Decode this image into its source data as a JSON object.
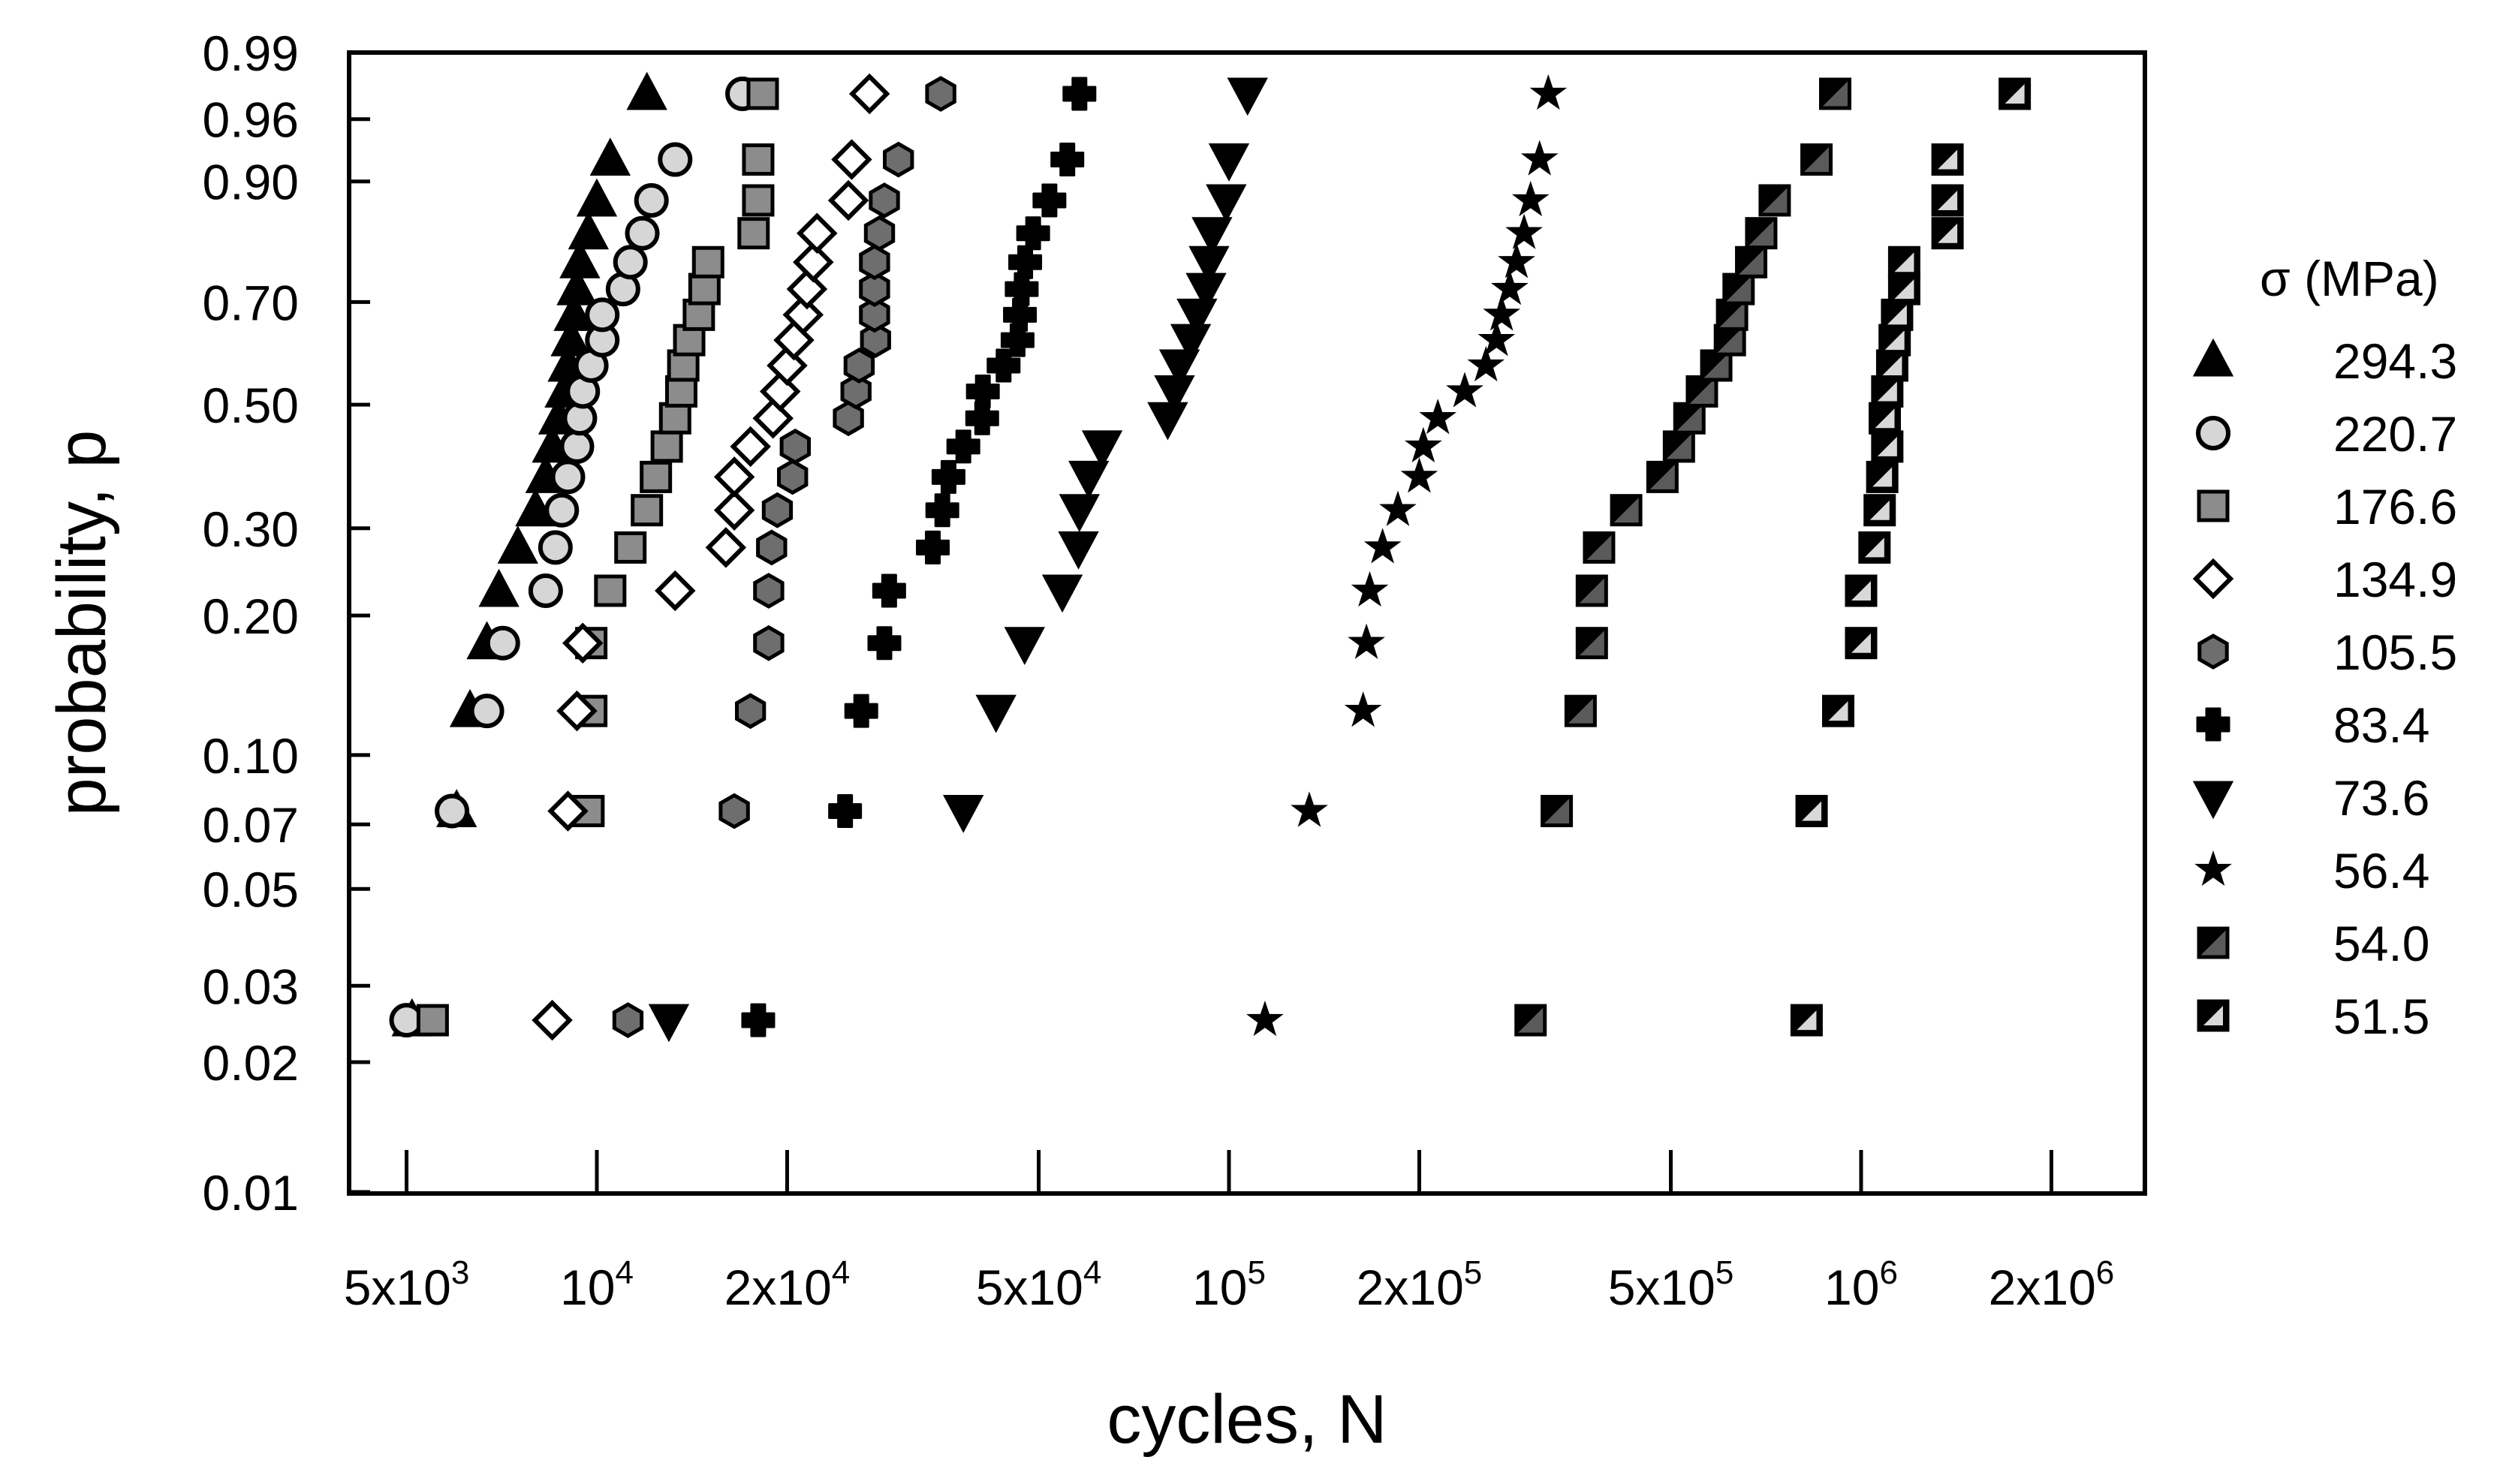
{
  "chart_data": {
    "type": "scatter",
    "title": "",
    "xlabel": "cycles, N",
    "ylabel": "probability, p",
    "x_scale": "log",
    "y_scale": "weibull-probability",
    "xlim": [
      4000,
      3000000
    ],
    "ylim": [
      0.01,
      0.99
    ],
    "grid": false,
    "legend_position": "right",
    "legend_title": "σ (MPa)",
    "y_ticks": [
      {
        "value": 0.01,
        "label": "0.01"
      },
      {
        "value": 0.02,
        "label": "0.02"
      },
      {
        "value": 0.03,
        "label": "0.03"
      },
      {
        "value": 0.05,
        "label": "0.05"
      },
      {
        "value": 0.07,
        "label": "0.07"
      },
      {
        "value": 0.1,
        "label": "0.10"
      },
      {
        "value": 0.2,
        "label": "0.20"
      },
      {
        "value": 0.3,
        "label": "0.30"
      },
      {
        "value": 0.5,
        "label": "0.50"
      },
      {
        "value": 0.7,
        "label": "0.70"
      },
      {
        "value": 0.9,
        "label": "0.90"
      },
      {
        "value": 0.96,
        "label": "0.96"
      },
      {
        "value": 0.99,
        "label": "0.99"
      }
    ],
    "x_ticks": [
      {
        "value": 5000,
        "mantissa": "5x10",
        "exp": "3"
      },
      {
        "value": 10000,
        "mantissa": "10",
        "exp": "4"
      },
      {
        "value": 20000,
        "mantissa": "2x10",
        "exp": "4"
      },
      {
        "value": 50000,
        "mantissa": "5x10",
        "exp": "4"
      },
      {
        "value": 100000,
        "mantissa": "10",
        "exp": "5"
      },
      {
        "value": 200000,
        "mantissa": "2x10",
        "exp": "5"
      },
      {
        "value": 500000,
        "mantissa": "5x10",
        "exp": "5"
      },
      {
        "value": 1000000,
        "mantissa": "10",
        "exp": "6"
      },
      {
        "value": 2000000,
        "mantissa": "2x10",
        "exp": "6"
      }
    ],
    "p_levels": [
      0.025,
      0.075,
      0.125,
      0.175,
      0.225,
      0.275,
      0.325,
      0.375,
      0.425,
      0.475,
      0.525,
      0.575,
      0.625,
      0.675,
      0.725,
      0.775,
      0.825,
      0.875,
      0.925,
      0.975
    ],
    "series": [
      {
        "name": "294.3",
        "marker": "triangle-up",
        "fill": "#000000",
        "x": [
          5100,
          6000,
          6300,
          6700,
          7000,
          7500,
          8000,
          8300,
          8500,
          8700,
          8900,
          9000,
          9100,
          9200,
          9300,
          9400,
          9700,
          10000,
          10500,
          12000
        ]
      },
      {
        "name": "220.7",
        "marker": "circle",
        "fill": "#d6d6d6",
        "x": [
          5000,
          5900,
          6700,
          7100,
          8300,
          8600,
          8800,
          9000,
          9300,
          9400,
          9500,
          9800,
          10200,
          10200,
          11000,
          11300,
          11800,
          12200,
          13300,
          17000
        ]
      },
      {
        "name": "176.6",
        "marker": "square",
        "fill": "#8c8c8c",
        "x": [
          5500,
          9700,
          9800,
          9800,
          10500,
          11300,
          12000,
          12400,
          12900,
          13300,
          13600,
          13700,
          14000,
          14500,
          14800,
          15000,
          17700,
          18000,
          18000,
          18300
        ]
      },
      {
        "name": "134.9",
        "marker": "diamond",
        "fill": "#ffffff",
        "x": [
          8500,
          9000,
          9300,
          9500,
          13300,
          16000,
          16500,
          16500,
          17500,
          19000,
          19500,
          20000,
          20500,
          21200,
          21500,
          22000,
          22300,
          25000,
          25300,
          27000
        ]
      },
      {
        "name": "105.5",
        "marker": "hexagon",
        "fill": "#6e6e6e",
        "x": [
          11200,
          16500,
          17500,
          18700,
          18700,
          18900,
          19300,
          20400,
          20600,
          25000,
          25700,
          26000,
          27600,
          27500,
          27500,
          27500,
          28000,
          28500,
          30000,
          35000
        ]
      },
      {
        "name": "83.4",
        "marker": "plus",
        "fill": "#000000",
        "x": [
          18000,
          24700,
          26200,
          28500,
          29000,
          34000,
          35200,
          36000,
          38000,
          40700,
          40800,
          44000,
          46300,
          46700,
          47000,
          47600,
          49000,
          52000,
          55500,
          58000
        ]
      },
      {
        "name": "73.6",
        "marker": "triangle-down",
        "fill": "#000000",
        "x": [
          13000,
          38000,
          42800,
          47500,
          54500,
          57800,
          58000,
          60000,
          63000,
          80000,
          82000,
          83500,
          87000,
          89000,
          92000,
          93000,
          94000,
          99000,
          100000,
          107000
        ]
      },
      {
        "name": "56.4",
        "marker": "star",
        "fill": "#000000",
        "x": [
          114000,
          134000,
          163000,
          165000,
          167000,
          175000,
          185000,
          200000,
          203000,
          214000,
          236000,
          255000,
          265000,
          270000,
          278000,
          285000,
          293000,
          300000,
          310000,
          320000
        ]
      },
      {
        "name": "54.0",
        "marker": "square-half-diag",
        "fill": "#000000",
        "x": [
          300000,
          330000,
          360000,
          375000,
          375000,
          385000,
          425000,
          485000,
          515000,
          535000,
          560000,
          590000,
          620000,
          625000,
          640000,
          670000,
          695000,
          730000,
          850000,
          910000
        ]
      },
      {
        "name": "51.5",
        "marker": "square-half-diag-light",
        "fill": "#000000",
        "x": [
          820000,
          835000,
          920000,
          1000000,
          1000000,
          1050000,
          1070000,
          1080000,
          1100000,
          1090000,
          1100000,
          1120000,
          1130000,
          1140000,
          1170000,
          1170000,
          1370000,
          1370000,
          1370000,
          1750000
        ]
      }
    ]
  }
}
